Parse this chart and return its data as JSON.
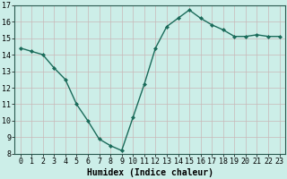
{
  "x": [
    0,
    1,
    2,
    3,
    4,
    5,
    6,
    7,
    8,
    9,
    10,
    11,
    12,
    13,
    14,
    15,
    16,
    17,
    18,
    19,
    20,
    21,
    22,
    23
  ],
  "y": [
    14.4,
    14.2,
    14.0,
    13.2,
    12.5,
    11.0,
    10.0,
    8.9,
    8.5,
    8.2,
    10.2,
    12.2,
    14.4,
    15.7,
    16.2,
    16.7,
    16.2,
    15.8,
    15.5,
    15.1,
    15.1,
    15.2,
    15.1,
    15.1
  ],
  "line_color": "#1a6b5a",
  "marker": "D",
  "marker_size": 2.0,
  "bg_color": "#cceee8",
  "grid_color": "#c8b8b8",
  "xlabel": "Humidex (Indice chaleur)",
  "xlim": [
    -0.5,
    23.5
  ],
  "ylim": [
    8,
    17
  ],
  "yticks": [
    8,
    9,
    10,
    11,
    12,
    13,
    14,
    15,
    16,
    17
  ],
  "xticks": [
    0,
    1,
    2,
    3,
    4,
    5,
    6,
    7,
    8,
    9,
    10,
    11,
    12,
    13,
    14,
    15,
    16,
    17,
    18,
    19,
    20,
    21,
    22,
    23
  ],
  "xlabel_fontsize": 7,
  "tick_fontsize": 6,
  "linewidth": 1.0
}
